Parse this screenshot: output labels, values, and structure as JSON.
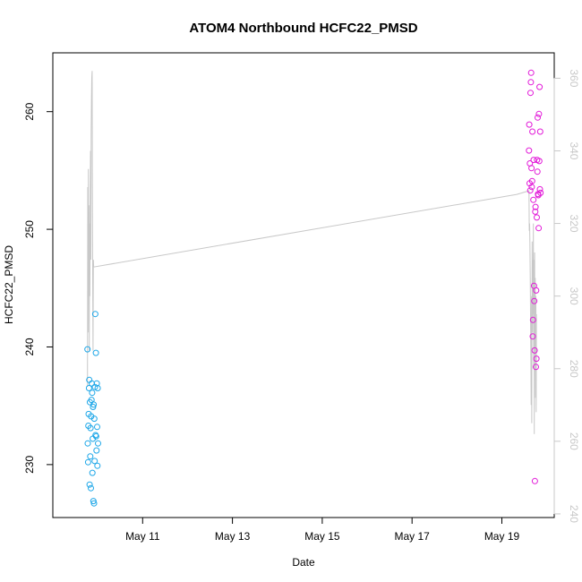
{
  "chart_data": {
    "type": "scatter",
    "title": "ATOM4 Northbound HCFC22_PMSD",
    "xlabel": "Date",
    "ylabel": "HCFC22_PMSD",
    "y2label": "",
    "xlim": [
      "2018-05-09T00:00",
      "2018-05-20T04:00"
    ],
    "ylim": [
      225.5,
      265
    ],
    "y2lim": [
      239,
      367
    ],
    "x_ticks": [
      {
        "date": "2018-05-11",
        "label": "May 11"
      },
      {
        "date": "2018-05-13",
        "label": "May 13"
      },
      {
        "date": "2018-05-15",
        "label": "May 15"
      },
      {
        "date": "2018-05-17",
        "label": "May 17"
      },
      {
        "date": "2018-05-19",
        "label": "May 19"
      }
    ],
    "y_ticks": [
      230,
      240,
      250,
      260
    ],
    "y2_ticks": [
      240,
      260,
      280,
      300,
      320,
      340,
      360
    ],
    "colors": {
      "series_blue": "#1ea7e8",
      "series_magenta": "#e21ad8",
      "secondary_line": "#c8c8c8"
    },
    "series": [
      {
        "axis": "left",
        "style": "open-circle",
        "color": "#1ea7e8",
        "points": [
          [
            "2018-05-09T18:30",
            239.8
          ],
          [
            "2018-05-09T18:40",
            231.8
          ],
          [
            "2018-05-09T18:50",
            230.2
          ],
          [
            "2018-05-09T19:00",
            233.3
          ],
          [
            "2018-05-09T19:10",
            234.3
          ],
          [
            "2018-05-09T19:20",
            236.5
          ],
          [
            "2018-05-09T19:30",
            237.2
          ],
          [
            "2018-05-09T19:40",
            228.3
          ],
          [
            "2018-05-09T19:50",
            235.3
          ],
          [
            "2018-05-09T20:00",
            230.7
          ],
          [
            "2018-05-09T20:10",
            233.1
          ],
          [
            "2018-05-09T20:20",
            228.0
          ],
          [
            "2018-05-09T20:30",
            234.1
          ],
          [
            "2018-05-09T20:40",
            235.5
          ],
          [
            "2018-05-09T20:50",
            236.9
          ],
          [
            "2018-05-09T21:00",
            236.1
          ],
          [
            "2018-05-09T21:10",
            229.3
          ],
          [
            "2018-05-09T21:20",
            232.2
          ],
          [
            "2018-05-09T21:30",
            234.9
          ],
          [
            "2018-05-09T21:40",
            226.9
          ],
          [
            "2018-05-09T21:50",
            235.1
          ],
          [
            "2018-05-09T22:00",
            226.7
          ],
          [
            "2018-05-09T22:10",
            233.9
          ],
          [
            "2018-05-09T22:20",
            230.3
          ],
          [
            "2018-05-09T22:30",
            236.6
          ],
          [
            "2018-05-09T22:40",
            242.8
          ],
          [
            "2018-05-09T22:50",
            232.5
          ],
          [
            "2018-05-09T23:00",
            239.5
          ],
          [
            "2018-05-09T23:10",
            232.4
          ],
          [
            "2018-05-09T23:20",
            231.2
          ],
          [
            "2018-05-09T23:30",
            236.9
          ],
          [
            "2018-05-09T23:40",
            233.2
          ],
          [
            "2018-05-09T23:50",
            229.9
          ],
          [
            "2018-05-10T00:00",
            236.5
          ],
          [
            "2018-05-10T00:10",
            231.8
          ]
        ]
      },
      {
        "axis": "left",
        "style": "open-circle",
        "color": "#e21ad8",
        "points": [
          [
            "2018-05-19T14:30",
            256.7
          ],
          [
            "2018-05-19T14:40",
            258.9
          ],
          [
            "2018-05-19T14:50",
            253.9
          ],
          [
            "2018-05-19T15:00",
            255.6
          ],
          [
            "2018-05-19T15:10",
            253.3
          ],
          [
            "2018-05-19T15:20",
            261.6
          ],
          [
            "2018-05-19T15:30",
            262.5
          ],
          [
            "2018-05-19T15:40",
            263.3
          ],
          [
            "2018-05-19T15:50",
            255.2
          ],
          [
            "2018-05-19T16:00",
            253.6
          ],
          [
            "2018-05-19T16:10",
            254.1
          ],
          [
            "2018-05-19T16:20",
            258.3
          ],
          [
            "2018-05-19T16:30",
            240.9
          ],
          [
            "2018-05-19T16:40",
            242.3
          ],
          [
            "2018-05-19T16:50",
            252.5
          ],
          [
            "2018-05-19T17:00",
            255.9
          ],
          [
            "2018-05-19T17:10",
            245.2
          ],
          [
            "2018-05-19T17:20",
            243.9
          ],
          [
            "2018-05-19T17:30",
            239.7
          ],
          [
            "2018-05-19T17:40",
            228.6
          ],
          [
            "2018-05-19T17:50",
            251.5
          ],
          [
            "2018-05-19T18:00",
            251.9
          ],
          [
            "2018-05-19T18:10",
            238.3
          ],
          [
            "2018-05-19T18:20",
            244.8
          ],
          [
            "2018-05-19T18:30",
            239.0
          ],
          [
            "2018-05-19T18:40",
            251.0
          ],
          [
            "2018-05-19T18:50",
            255.9
          ],
          [
            "2018-05-19T19:00",
            254.9
          ],
          [
            "2018-05-19T19:10",
            259.5
          ],
          [
            "2018-05-19T19:20",
            253.0
          ],
          [
            "2018-05-19T19:30",
            252.9
          ],
          [
            "2018-05-19T19:40",
            250.1
          ],
          [
            "2018-05-19T19:50",
            259.8
          ],
          [
            "2018-05-19T20:00",
            255.8
          ],
          [
            "2018-05-19T20:10",
            262.1
          ],
          [
            "2018-05-19T20:20",
            253.4
          ],
          [
            "2018-05-19T20:30",
            258.3
          ],
          [
            "2018-05-19T20:40",
            253.1
          ]
        ]
      },
      {
        "axis": "right",
        "style": "line",
        "color": "#c8c8c8",
        "points": [
          [
            "2018-05-09T18:30",
            275
          ],
          [
            "2018-05-09T18:40",
            330
          ],
          [
            "2018-05-09T18:50",
            290
          ],
          [
            "2018-05-09T19:00",
            335
          ],
          [
            "2018-05-09T19:10",
            300
          ],
          [
            "2018-05-09T19:20",
            325
          ],
          [
            "2018-05-09T19:30",
            285
          ],
          [
            "2018-05-09T19:40",
            320
          ],
          [
            "2018-05-09T19:50",
            300
          ],
          [
            "2018-05-09T20:00",
            330
          ],
          [
            "2018-05-09T20:10",
            340
          ],
          [
            "2018-05-09T20:20",
            310
          ],
          [
            "2018-05-09T20:30",
            345
          ],
          [
            "2018-05-09T20:40",
            355
          ],
          [
            "2018-05-09T20:50",
            360
          ],
          [
            "2018-05-09T21:00",
            362
          ],
          [
            "2018-05-09T21:10",
            330
          ],
          [
            "2018-05-09T21:20",
            300
          ],
          [
            "2018-05-09T21:30",
            285
          ],
          [
            "2018-05-09T21:40",
            310
          ],
          [
            "2018-05-09T21:50",
            308
          ],
          [
            "2018-05-19T08:00",
            328
          ],
          [
            "2018-05-19T14:30",
            329
          ],
          [
            "2018-05-19T14:40",
            318
          ],
          [
            "2018-05-19T14:50",
            320
          ],
          [
            "2018-05-19T15:00",
            315
          ],
          [
            "2018-05-19T15:10",
            305
          ],
          [
            "2018-05-19T15:20",
            295
          ],
          [
            "2018-05-19T15:30",
            282
          ],
          [
            "2018-05-19T15:40",
            270
          ],
          [
            "2018-05-19T15:50",
            300
          ],
          [
            "2018-05-19T16:00",
            265
          ],
          [
            "2018-05-19T16:10",
            315
          ],
          [
            "2018-05-19T16:20",
            290
          ],
          [
            "2018-05-19T16:30",
            310
          ],
          [
            "2018-05-19T16:40",
            295
          ],
          [
            "2018-05-19T16:50",
            320
          ],
          [
            "2018-05-19T17:00",
            280
          ],
          [
            "2018-05-19T17:10",
            310
          ],
          [
            "2018-05-19T17:20",
            262
          ],
          [
            "2018-05-19T17:30",
            312
          ],
          [
            "2018-05-19T17:40",
            285
          ],
          [
            "2018-05-19T17:50",
            305
          ],
          [
            "2018-05-19T18:00",
            272
          ],
          [
            "2018-05-19T18:10",
            300
          ],
          [
            "2018-05-19T18:20",
            268
          ],
          [
            "2018-05-19T18:30",
            295
          ]
        ]
      }
    ]
  }
}
